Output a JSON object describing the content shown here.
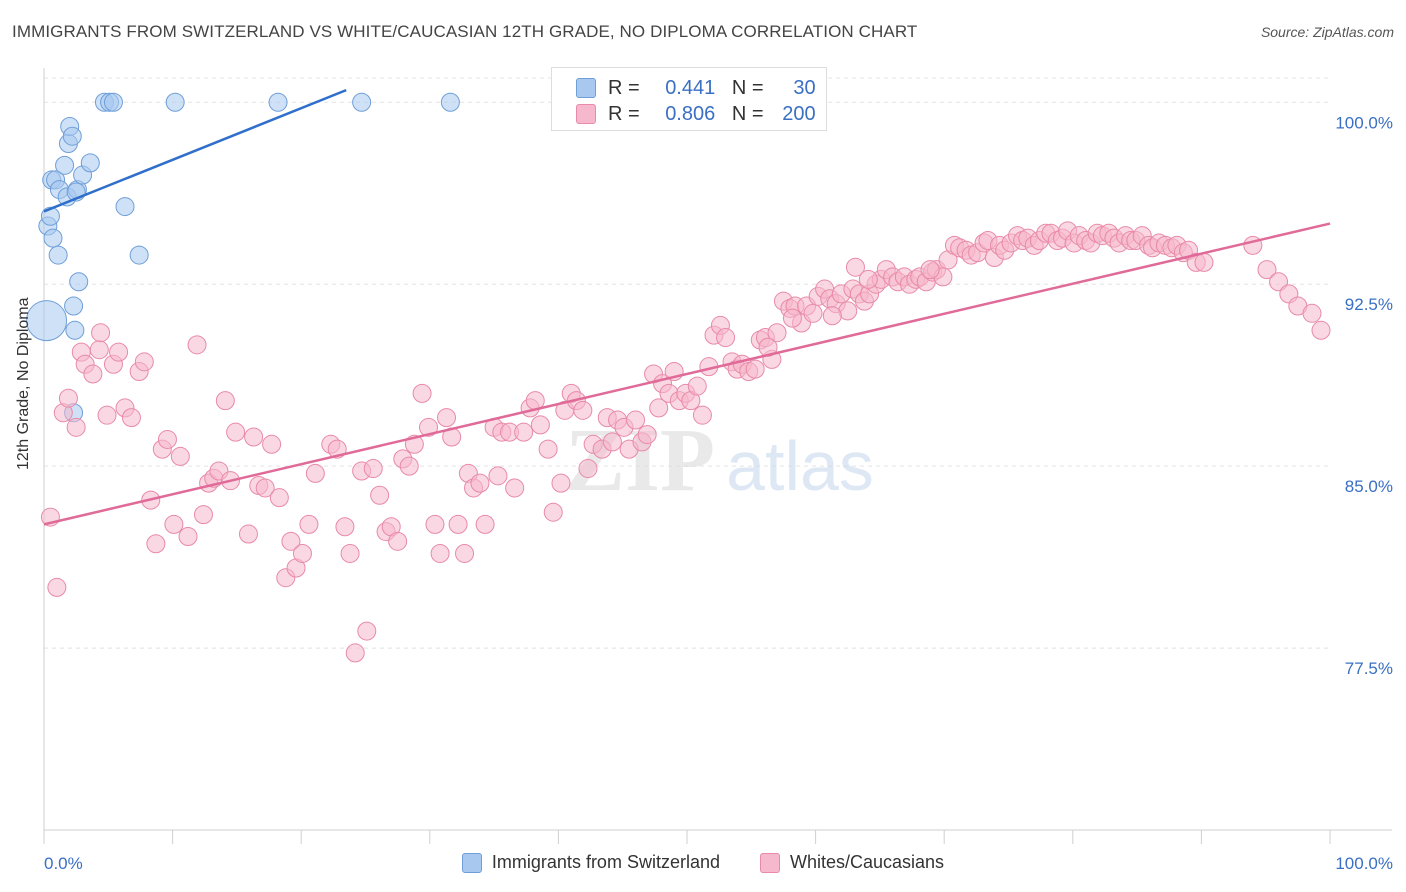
{
  "title": "IMMIGRANTS FROM SWITZERLAND VS WHITE/CAUCASIAN 12TH GRADE, NO DIPLOMA CORRELATION CHART",
  "source": "Source: ZipAtlas.com",
  "watermark": "ZIPatlas",
  "legend_top": {
    "rows": [
      {
        "r_label": "R =",
        "r_value": "0.441",
        "n_label": "N =",
        "n_value": "30",
        "color": "#a8c8f0"
      },
      {
        "r_label": "R =",
        "r_value": "0.806",
        "n_label": "N =",
        "n_value": "200",
        "color": "#f5b8cc"
      }
    ]
  },
  "chart_data": {
    "type": "scatter",
    "ylabel": "12th Grade, No Diploma",
    "xlabel": "",
    "x_tick_labels": [
      "0.0%",
      "100.0%"
    ],
    "y_tick_labels": [
      "100.0%",
      "92.5%",
      "85.0%",
      "77.5%"
    ],
    "y_ticks": [
      100.0,
      92.5,
      85.0,
      77.5
    ],
    "xlim": [
      0,
      100
    ],
    "ylim": [
      70.0,
      101.0
    ],
    "grid": true,
    "legend_position": "bottom-center",
    "series": [
      {
        "name": "Immigrants from Switzerland",
        "color": "#a8c8f0",
        "stroke": "#6f9fd8",
        "trend_color": "#2f6fcb",
        "trend": {
          "x0": 0.0,
          "y0": 95.5,
          "x1": 23.5,
          "y1": 100.5
        },
        "points": [
          [
            0.3,
            94.9
          ],
          [
            0.5,
            95.3
          ],
          [
            0.7,
            94.4
          ],
          [
            0.6,
            96.8
          ],
          [
            0.9,
            96.8
          ],
          [
            1.2,
            96.4
          ],
          [
            1.6,
            97.4
          ],
          [
            1.8,
            96.1
          ],
          [
            1.9,
            98.3
          ],
          [
            2.0,
            99.0
          ],
          [
            2.2,
            98.6
          ],
          [
            2.6,
            96.4
          ],
          [
            2.5,
            96.3
          ],
          [
            3.0,
            97.0
          ],
          [
            3.6,
            97.5
          ],
          [
            4.7,
            100.0
          ],
          [
            5.1,
            100.0
          ],
          [
            5.4,
            100.0
          ],
          [
            10.2,
            100.0
          ],
          [
            18.2,
            100.0
          ],
          [
            24.7,
            100.0
          ],
          [
            31.6,
            100.0
          ],
          [
            6.3,
            95.7
          ],
          [
            7.4,
            93.7
          ],
          [
            1.1,
            93.7
          ],
          [
            2.7,
            92.6
          ],
          [
            2.3,
            91.6
          ],
          [
            2.4,
            90.6
          ],
          [
            0.2,
            91.0
          ],
          [
            2.3,
            87.2
          ]
        ]
      },
      {
        "name": "Whites/Caucasians",
        "color": "#f5b8cc",
        "stroke": "#e88aa8",
        "trend_color": "#e06a98",
        "trend": {
          "x0": 0.0,
          "y0": 82.6,
          "x1": 100.0,
          "y1": 95.0
        },
        "points": [
          [
            0.5,
            82.9
          ],
          [
            1.0,
            80.0
          ],
          [
            1.5,
            87.2
          ],
          [
            1.9,
            87.8
          ],
          [
            2.5,
            86.6
          ],
          [
            2.9,
            89.7
          ],
          [
            3.2,
            89.2
          ],
          [
            3.8,
            88.8
          ],
          [
            4.3,
            89.8
          ],
          [
            4.4,
            90.5
          ],
          [
            4.9,
            87.1
          ],
          [
            5.4,
            89.2
          ],
          [
            5.8,
            89.7
          ],
          [
            6.3,
            87.4
          ],
          [
            6.8,
            87.0
          ],
          [
            7.4,
            88.9
          ],
          [
            7.8,
            89.3
          ],
          [
            8.3,
            83.6
          ],
          [
            8.7,
            81.8
          ],
          [
            9.2,
            85.7
          ],
          [
            9.6,
            86.1
          ],
          [
            10.1,
            82.6
          ],
          [
            10.6,
            85.4
          ],
          [
            11.2,
            82.1
          ],
          [
            11.9,
            90.0
          ],
          [
            12.4,
            83.0
          ],
          [
            12.8,
            84.3
          ],
          [
            13.2,
            84.5
          ],
          [
            13.6,
            84.8
          ],
          [
            14.1,
            87.7
          ],
          [
            14.5,
            84.4
          ],
          [
            14.9,
            86.4
          ],
          [
            15.9,
            82.2
          ],
          [
            16.3,
            86.2
          ],
          [
            16.7,
            84.2
          ],
          [
            17.2,
            84.1
          ],
          [
            17.7,
            85.9
          ],
          [
            18.3,
            83.7
          ],
          [
            18.8,
            80.4
          ],
          [
            19.2,
            81.9
          ],
          [
            19.6,
            80.8
          ],
          [
            20.1,
            81.4
          ],
          [
            20.6,
            82.6
          ],
          [
            21.1,
            84.7
          ],
          [
            22.3,
            85.9
          ],
          [
            22.8,
            85.7
          ],
          [
            23.4,
            82.5
          ],
          [
            23.8,
            81.4
          ],
          [
            24.2,
            77.3
          ],
          [
            24.7,
            84.8
          ],
          [
            25.1,
            78.2
          ],
          [
            25.6,
            84.9
          ],
          [
            26.1,
            83.8
          ],
          [
            26.6,
            82.3
          ],
          [
            27.0,
            82.5
          ],
          [
            27.5,
            81.9
          ],
          [
            27.9,
            85.3
          ],
          [
            28.4,
            85.0
          ],
          [
            28.8,
            85.9
          ],
          [
            29.4,
            88.0
          ],
          [
            29.9,
            86.6
          ],
          [
            30.4,
            82.6
          ],
          [
            30.8,
            81.4
          ],
          [
            31.3,
            87.0
          ],
          [
            31.7,
            86.2
          ],
          [
            32.2,
            82.6
          ],
          [
            32.7,
            81.4
          ],
          [
            33.0,
            84.7
          ],
          [
            33.4,
            84.1
          ],
          [
            33.9,
            84.3
          ],
          [
            34.3,
            82.6
          ],
          [
            35.0,
            86.6
          ],
          [
            35.3,
            84.6
          ],
          [
            35.6,
            86.4
          ],
          [
            36.2,
            86.4
          ],
          [
            36.6,
            84.1
          ],
          [
            37.3,
            86.4
          ],
          [
            37.8,
            87.4
          ],
          [
            38.2,
            87.7
          ],
          [
            38.6,
            86.7
          ],
          [
            39.2,
            85.7
          ],
          [
            39.6,
            83.1
          ],
          [
            40.2,
            84.3
          ],
          [
            40.5,
            87.3
          ],
          [
            41.0,
            88.0
          ],
          [
            41.4,
            87.7
          ],
          [
            41.9,
            87.3
          ],
          [
            42.3,
            84.9
          ],
          [
            42.7,
            85.9
          ],
          [
            43.4,
            85.7
          ],
          [
            43.8,
            87.0
          ],
          [
            44.2,
            86.0
          ],
          [
            44.6,
            86.9
          ],
          [
            45.1,
            86.6
          ],
          [
            45.5,
            85.7
          ],
          [
            46.0,
            86.9
          ],
          [
            46.5,
            86.0
          ],
          [
            46.9,
            86.3
          ],
          [
            47.4,
            88.8
          ],
          [
            47.8,
            87.4
          ],
          [
            48.1,
            88.4
          ],
          [
            48.6,
            88.0
          ],
          [
            49.0,
            88.9
          ],
          [
            49.4,
            87.7
          ],
          [
            49.9,
            88.0
          ],
          [
            50.3,
            87.7
          ],
          [
            50.8,
            88.3
          ],
          [
            51.2,
            87.1
          ],
          [
            51.7,
            89.1
          ],
          [
            52.1,
            90.4
          ],
          [
            52.6,
            90.8
          ],
          [
            53.0,
            90.3
          ],
          [
            53.5,
            89.3
          ],
          [
            53.9,
            89.0
          ],
          [
            54.3,
            89.2
          ],
          [
            54.8,
            88.9
          ],
          [
            55.3,
            89.0
          ],
          [
            55.7,
            90.2
          ],
          [
            56.1,
            90.3
          ],
          [
            56.6,
            89.4
          ],
          [
            57.0,
            90.5
          ],
          [
            57.5,
            91.8
          ],
          [
            58.0,
            91.5
          ],
          [
            58.4,
            91.6
          ],
          [
            58.9,
            90.9
          ],
          [
            59.3,
            91.6
          ],
          [
            59.8,
            91.3
          ],
          [
            60.2,
            92.0
          ],
          [
            60.7,
            92.3
          ],
          [
            61.1,
            91.9
          ],
          [
            61.6,
            91.7
          ],
          [
            62.0,
            92.1
          ],
          [
            62.5,
            91.4
          ],
          [
            62.9,
            92.3
          ],
          [
            63.4,
            92.1
          ],
          [
            63.8,
            91.8
          ],
          [
            64.2,
            92.1
          ],
          [
            64.7,
            92.5
          ],
          [
            65.1,
            92.7
          ],
          [
            65.5,
            93.1
          ],
          [
            66.0,
            92.8
          ],
          [
            66.4,
            92.6
          ],
          [
            66.9,
            92.8
          ],
          [
            67.3,
            92.5
          ],
          [
            67.8,
            92.7
          ],
          [
            68.1,
            92.8
          ],
          [
            68.6,
            92.6
          ],
          [
            69.1,
            93.0
          ],
          [
            69.4,
            93.1
          ],
          [
            69.9,
            92.8
          ],
          [
            70.3,
            93.5
          ],
          [
            70.8,
            94.1
          ],
          [
            71.2,
            94.0
          ],
          [
            71.7,
            93.9
          ],
          [
            72.1,
            93.7
          ],
          [
            72.6,
            93.8
          ],
          [
            73.1,
            94.2
          ],
          [
            73.4,
            94.3
          ],
          [
            73.9,
            93.6
          ],
          [
            74.3,
            94.1
          ],
          [
            74.7,
            93.9
          ],
          [
            75.2,
            94.2
          ],
          [
            75.7,
            94.5
          ],
          [
            76.1,
            94.3
          ],
          [
            76.5,
            94.4
          ],
          [
            77.0,
            94.1
          ],
          [
            77.4,
            94.3
          ],
          [
            77.9,
            94.6
          ],
          [
            78.3,
            94.6
          ],
          [
            78.8,
            94.3
          ],
          [
            79.2,
            94.4
          ],
          [
            79.6,
            94.7
          ],
          [
            80.1,
            94.2
          ],
          [
            80.5,
            94.5
          ],
          [
            81.0,
            94.3
          ],
          [
            81.4,
            94.2
          ],
          [
            81.9,
            94.6
          ],
          [
            82.3,
            94.5
          ],
          [
            82.8,
            94.6
          ],
          [
            83.2,
            94.4
          ],
          [
            83.6,
            94.2
          ],
          [
            84.1,
            94.5
          ],
          [
            84.5,
            94.3
          ],
          [
            84.9,
            94.3
          ],
          [
            85.4,
            94.5
          ],
          [
            85.9,
            94.1
          ],
          [
            86.2,
            94.0
          ],
          [
            86.7,
            94.2
          ],
          [
            87.2,
            94.1
          ],
          [
            87.7,
            94.0
          ],
          [
            88.1,
            94.1
          ],
          [
            88.6,
            93.8
          ],
          [
            89.0,
            93.9
          ],
          [
            89.6,
            93.4
          ],
          [
            90.2,
            93.4
          ],
          [
            94.0,
            94.1
          ],
          [
            95.1,
            93.1
          ],
          [
            96.0,
            92.6
          ],
          [
            96.8,
            92.1
          ],
          [
            97.5,
            91.6
          ],
          [
            98.6,
            91.3
          ],
          [
            99.3,
            90.6
          ],
          [
            56.3,
            89.9
          ],
          [
            58.2,
            91.1
          ],
          [
            61.3,
            91.2
          ],
          [
            63.1,
            93.2
          ],
          [
            64.1,
            92.7
          ],
          [
            68.9,
            93.1
          ]
        ]
      }
    ]
  }
}
